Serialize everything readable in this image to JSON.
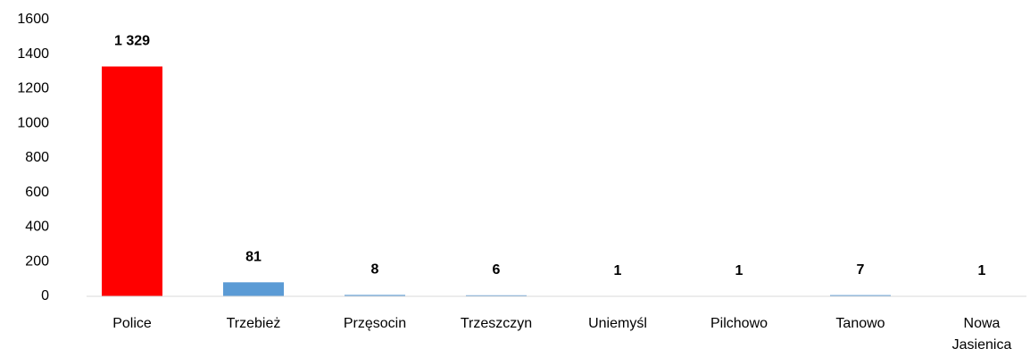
{
  "chart_data": {
    "type": "bar",
    "categories": [
      "Police",
      "Trzebież",
      "Przęsocin",
      "Trzeszczyn",
      "Uniemyśl",
      "Pilchowo",
      "Tanowo",
      "Nowa Jasienica"
    ],
    "values": [
      1329,
      81,
      8,
      6,
      1,
      1,
      7,
      1
    ],
    "value_labels": [
      "1 329",
      "81",
      "8",
      "6",
      "1",
      "1",
      "7",
      "1"
    ],
    "colors": [
      "#ff0000",
      "#5b9bd5",
      "#5b9bd5",
      "#5b9bd5",
      "#5b9bd5",
      "#5b9bd5",
      "#5b9bd5",
      "#5b9bd5"
    ],
    "ylim": [
      0,
      1600
    ],
    "yticks": [
      0,
      200,
      400,
      600,
      800,
      1000,
      1200,
      1400,
      1600
    ],
    "grid": false
  }
}
